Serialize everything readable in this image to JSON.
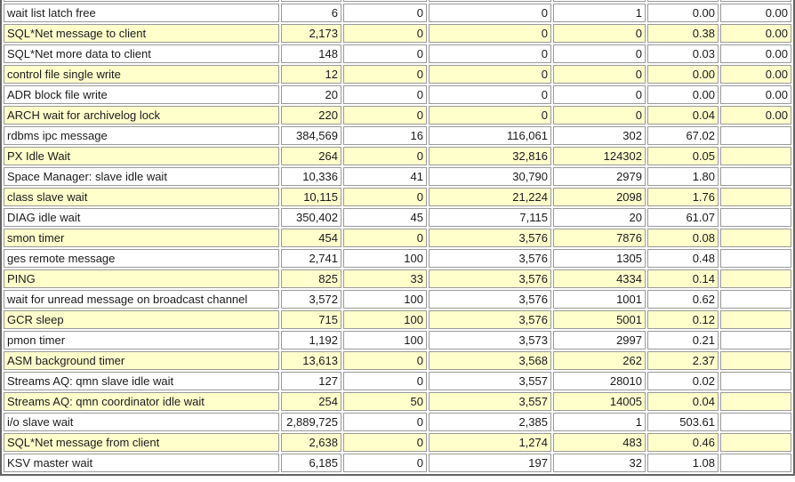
{
  "colors": {
    "row_white": "#ffffff",
    "row_yellow": "#ffffcc",
    "cell_border": "#999999",
    "outer_border": "#636363",
    "text": "#1a1a1a"
  },
  "wait_events_table": {
    "rows": [
      {
        "event": "wait list latch free",
        "values": [
          "6",
          "0",
          "0",
          "1",
          "0.00",
          "0.00"
        ]
      },
      {
        "event": "SQL*Net message to client",
        "values": [
          "2,173",
          "0",
          "0",
          "0",
          "0.38",
          "0.00"
        ]
      },
      {
        "event": "SQL*Net more data to client",
        "values": [
          "148",
          "0",
          "0",
          "0",
          "0.03",
          "0.00"
        ]
      },
      {
        "event": "control file single write",
        "values": [
          "12",
          "0",
          "0",
          "0",
          "0.00",
          "0.00"
        ]
      },
      {
        "event": "ADR block file write",
        "values": [
          "20",
          "0",
          "0",
          "0",
          "0.00",
          "0.00"
        ]
      },
      {
        "event": "ARCH wait for archivelog lock",
        "values": [
          "220",
          "0",
          "0",
          "0",
          "0.04",
          "0.00"
        ]
      },
      {
        "event": "rdbms ipc message",
        "values": [
          "384,569",
          "16",
          "116,061",
          "302",
          "67.02",
          ""
        ]
      },
      {
        "event": "PX Idle Wait",
        "values": [
          "264",
          "0",
          "32,816",
          "124302",
          "0.05",
          ""
        ]
      },
      {
        "event": "Space Manager: slave idle wait",
        "values": [
          "10,336",
          "41",
          "30,790",
          "2979",
          "1.80",
          ""
        ]
      },
      {
        "event": "class slave wait",
        "values": [
          "10,115",
          "0",
          "21,224",
          "2098",
          "1.76",
          ""
        ]
      },
      {
        "event": "DIAG idle wait",
        "values": [
          "350,402",
          "45",
          "7,115",
          "20",
          "61.07",
          ""
        ]
      },
      {
        "event": "smon timer",
        "values": [
          "454",
          "0",
          "3,576",
          "7876",
          "0.08",
          ""
        ]
      },
      {
        "event": "ges remote message",
        "values": [
          "2,741",
          "100",
          "3,576",
          "1305",
          "0.48",
          ""
        ]
      },
      {
        "event": "PING",
        "values": [
          "825",
          "33",
          "3,576",
          "4334",
          "0.14",
          ""
        ]
      },
      {
        "event": "wait for unread message on broadcast channel",
        "values": [
          "3,572",
          "100",
          "3,576",
          "1001",
          "0.62",
          ""
        ]
      },
      {
        "event": "GCR sleep",
        "values": [
          "715",
          "100",
          "3,576",
          "5001",
          "0.12",
          ""
        ]
      },
      {
        "event": "pmon timer",
        "values": [
          "1,192",
          "100",
          "3,573",
          "2997",
          "0.21",
          ""
        ]
      },
      {
        "event": "ASM background timer",
        "values": [
          "13,613",
          "0",
          "3,568",
          "262",
          "2.37",
          ""
        ]
      },
      {
        "event": "Streams AQ: qmn slave idle wait",
        "values": [
          "127",
          "0",
          "3,557",
          "28010",
          "0.02",
          ""
        ]
      },
      {
        "event": "Streams AQ: qmn coordinator idle wait",
        "values": [
          "254",
          "50",
          "3,557",
          "14005",
          "0.04",
          ""
        ]
      },
      {
        "event": "i/o slave wait",
        "values": [
          "2,889,725",
          "0",
          "2,385",
          "1",
          "503.61",
          ""
        ]
      },
      {
        "event": "SQL*Net message from client",
        "values": [
          "2,638",
          "0",
          "1,274",
          "483",
          "0.46",
          ""
        ]
      },
      {
        "event": "KSV master wait",
        "values": [
          "6,185",
          "0",
          "197",
          "32",
          "1.08",
          ""
        ]
      }
    ]
  }
}
